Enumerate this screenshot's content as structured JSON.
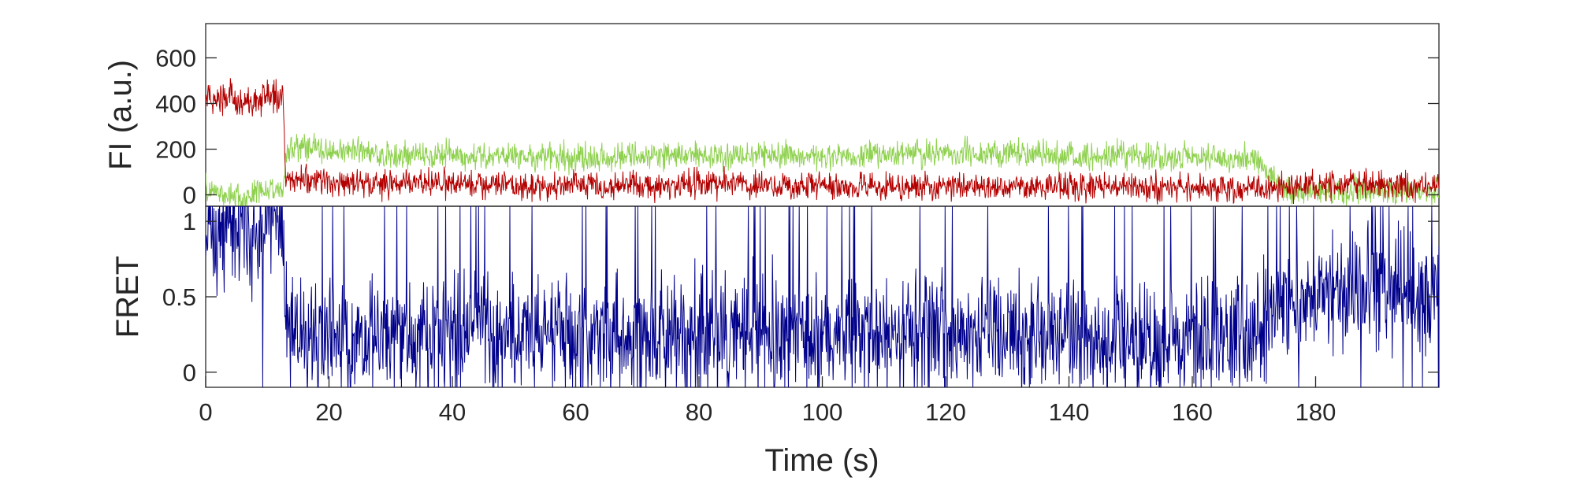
{
  "chart_data": [
    {
      "type": "line",
      "panel": "top",
      "ylabel": "FI (a.u.)",
      "xlim": [
        0,
        200
      ],
      "ylim": [
        -50,
        750
      ],
      "yticks": [
        0,
        200,
        400,
        600
      ],
      "ytick_labels": [
        "0",
        "200",
        "400",
        "600"
      ],
      "grid": false,
      "legend": "none",
      "series": [
        {
          "color": "#8fd14f",
          "x": [
            0,
            2,
            4,
            6,
            8,
            10,
            12.5,
            13,
            15,
            20,
            25,
            30,
            40,
            50,
            60,
            70,
            80,
            90,
            100,
            110,
            120,
            130,
            140,
            150,
            160,
            170,
            175,
            180,
            185,
            190,
            195,
            200
          ],
          "values": [
            30,
            10,
            0,
            -20,
            10,
            20,
            0,
            190,
            210,
            190,
            190,
            170,
            180,
            170,
            160,
            170,
            170,
            180,
            170,
            180,
            180,
            180,
            170,
            170,
            160,
            160,
            20,
            20,
            20,
            10,
            10,
            10
          ]
        },
        {
          "color": "#b30000",
          "x": [
            0,
            2,
            4,
            6,
            8,
            10,
            12.5,
            13,
            15,
            20,
            25,
            30,
            40,
            50,
            60,
            70,
            80,
            90,
            100,
            110,
            120,
            130,
            140,
            150,
            160,
            170,
            175,
            180,
            185,
            190,
            195,
            200
          ],
          "values": [
            420,
            430,
            450,
            380,
            400,
            450,
            420,
            60,
            70,
            60,
            50,
            50,
            50,
            40,
            45,
            40,
            45,
            40,
            40,
            35,
            35,
            40,
            35,
            35,
            30,
            30,
            40,
            40,
            50,
            40,
            40,
            40
          ]
        }
      ]
    },
    {
      "type": "line",
      "panel": "bottom",
      "ylabel": "FRET",
      "xlabel": "Time (s)",
      "xlim": [
        0,
        200
      ],
      "ylim": [
        -0.1,
        1.1
      ],
      "yticks": [
        0,
        0.5,
        1
      ],
      "ytick_labels": [
        "0",
        "0.5",
        "1"
      ],
      "xticks": [
        0,
        20,
        40,
        60,
        80,
        100,
        120,
        140,
        160,
        180
      ],
      "xtick_labels": [
        "0",
        "20",
        "40",
        "60",
        "80",
        "100",
        "120",
        "140",
        "160",
        "180"
      ],
      "grid": false,
      "legend": "none",
      "series": [
        {
          "color": "#00008b",
          "x": [
            0,
            2,
            4,
            6,
            8,
            10,
            12.5,
            13,
            15,
            20,
            30,
            40,
            50,
            60,
            70,
            80,
            90,
            100,
            110,
            120,
            130,
            140,
            150,
            160,
            170,
            175,
            180,
            185,
            190,
            195,
            200
          ],
          "values": [
            0.9,
            0.95,
            1.0,
            0.95,
            0.9,
            0.95,
            0.95,
            0.3,
            0.25,
            0.25,
            0.25,
            0.25,
            0.25,
            0.25,
            0.25,
            0.25,
            0.25,
            0.25,
            0.25,
            0.25,
            0.25,
            0.25,
            0.2,
            0.25,
            0.25,
            0.5,
            0.5,
            0.55,
            0.55,
            0.55,
            0.55
          ]
        }
      ]
    }
  ]
}
